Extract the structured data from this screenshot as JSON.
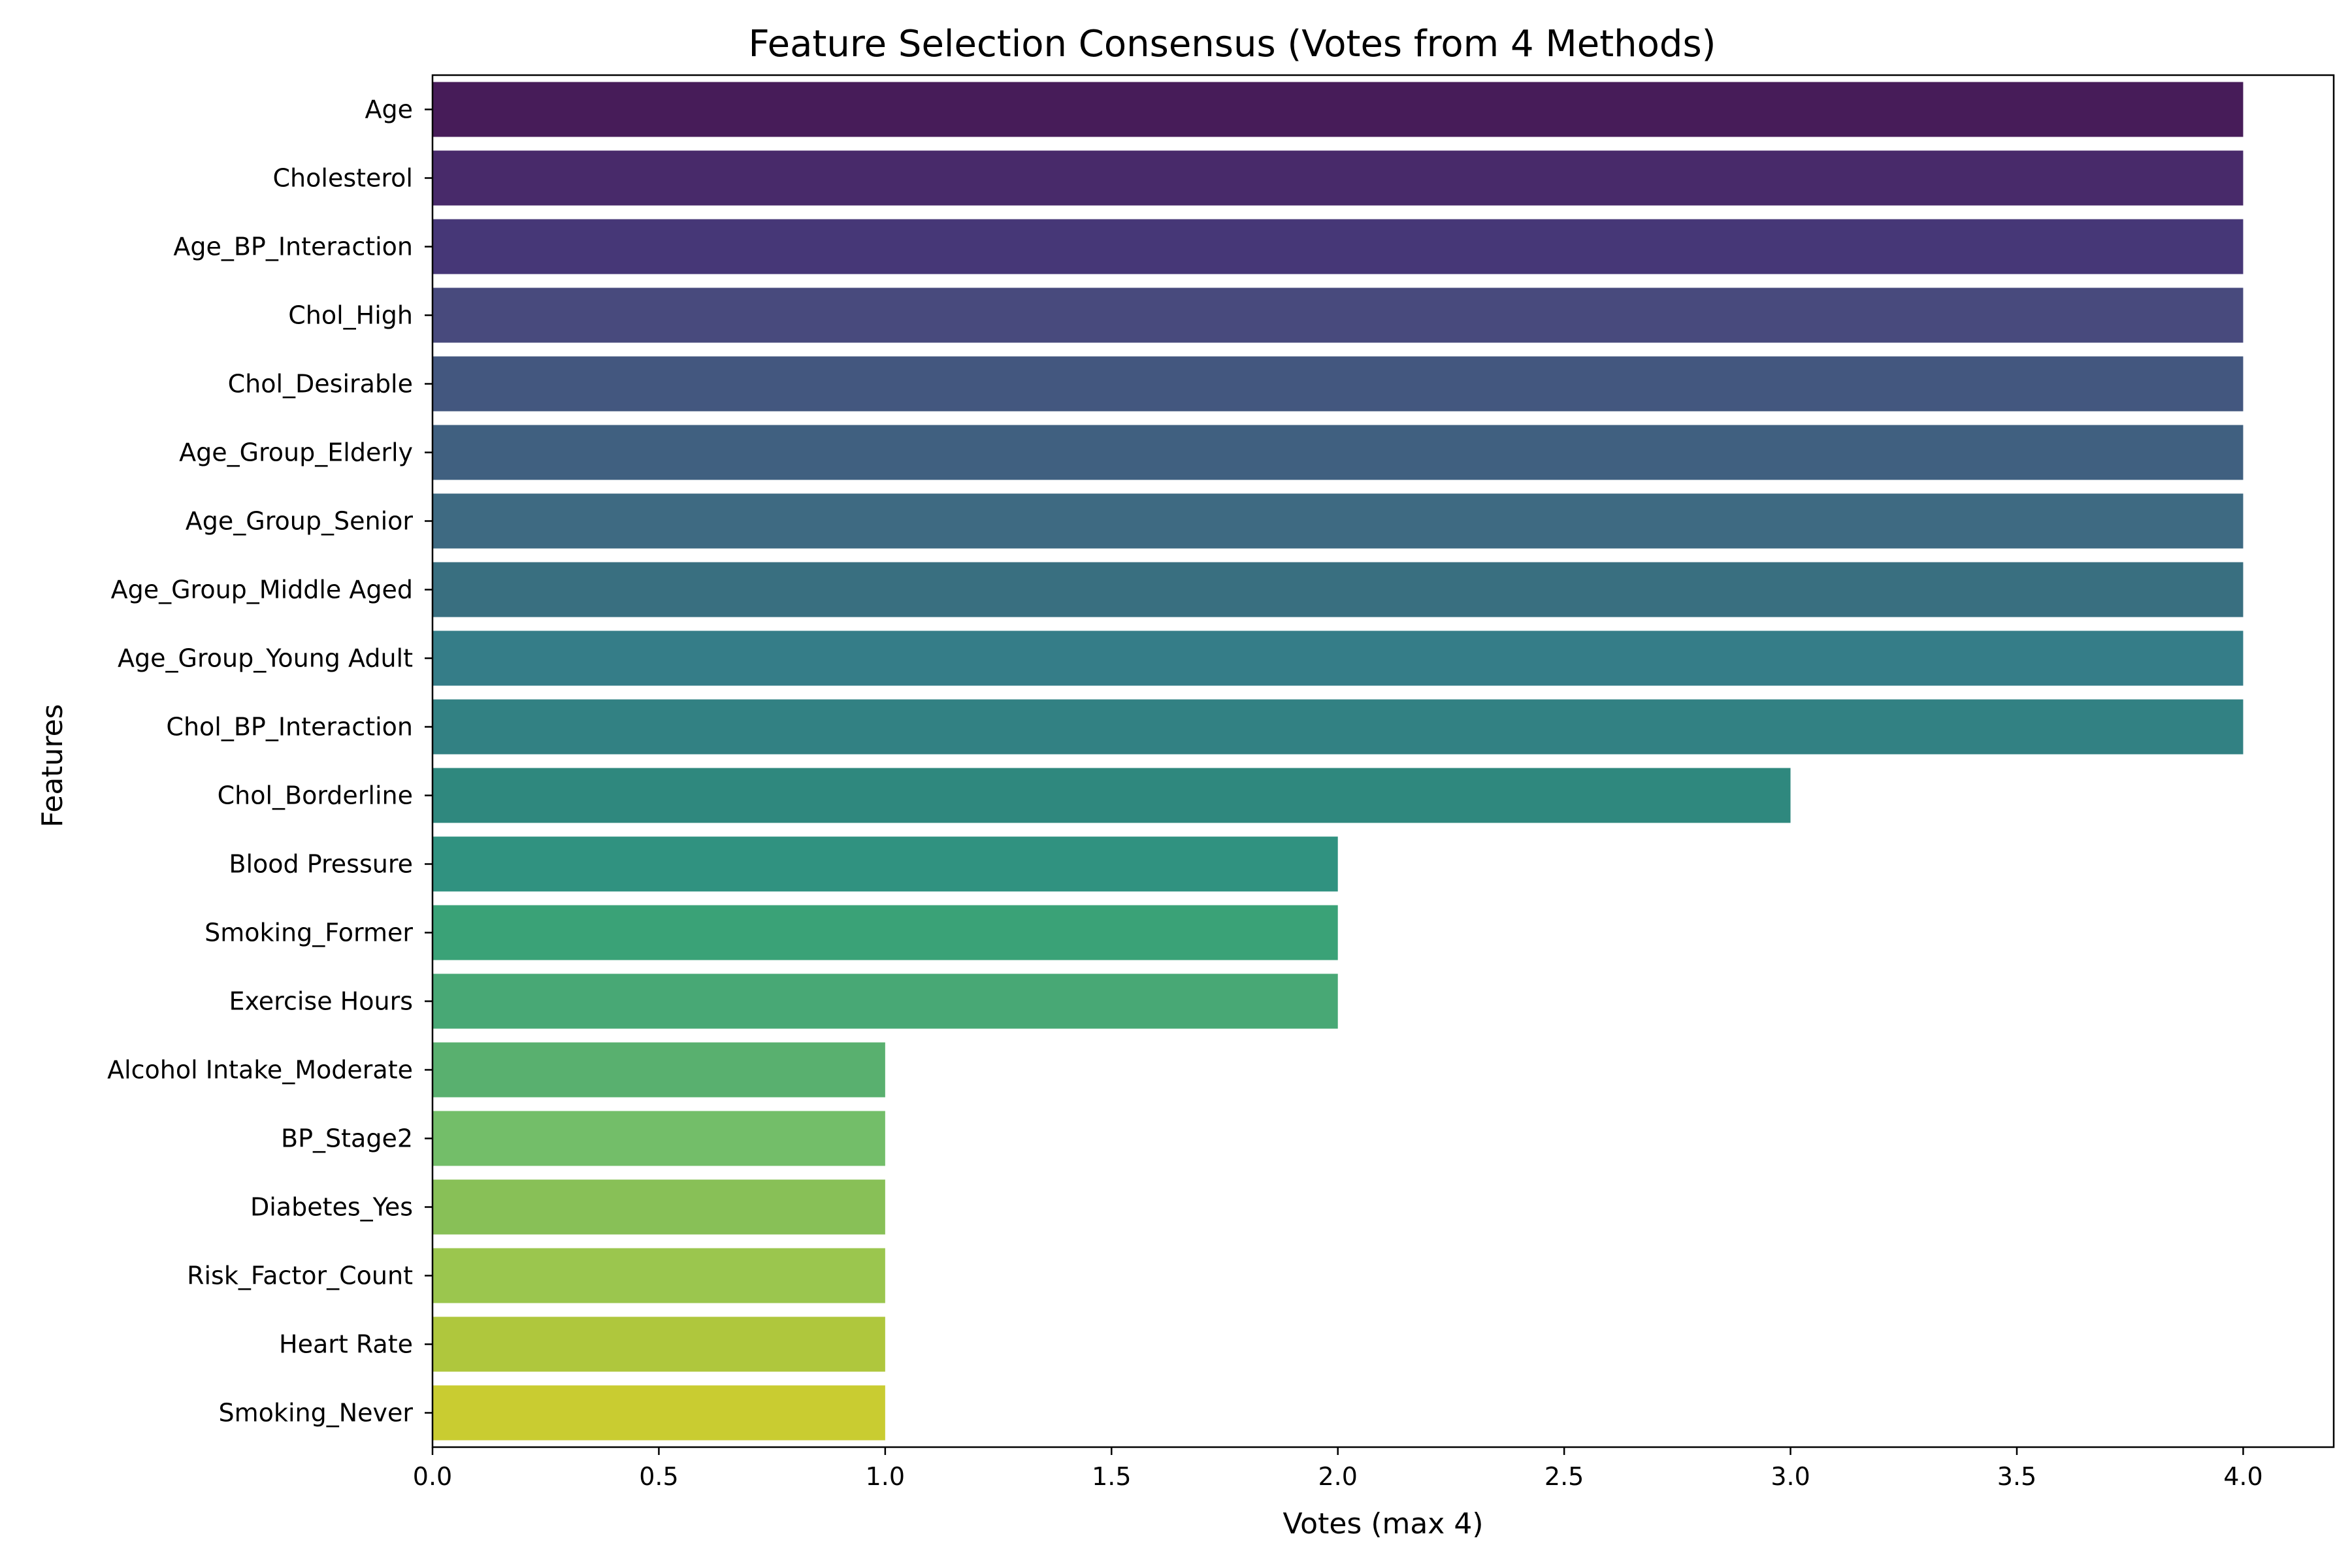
{
  "chart_data": {
    "type": "bar",
    "orientation": "horizontal",
    "title": "Feature Selection Consensus (Votes from 4 Methods)",
    "xlabel": "Votes (max 4)",
    "ylabel": "Features",
    "xlim": [
      0,
      4.2
    ],
    "xticks": [
      "0.0",
      "0.5",
      "1.0",
      "1.5",
      "2.0",
      "2.5",
      "3.0",
      "3.5",
      "4.0"
    ],
    "grid": false,
    "legend": "none",
    "categories": [
      "Age",
      "Cholesterol",
      "Age_BP_Interaction",
      "Chol_High",
      "Chol_Desirable",
      "Age_Group_Elderly",
      "Age_Group_Senior",
      "Age_Group_Middle Aged",
      "Age_Group_Young Adult",
      "Chol_BP_Interaction",
      "Chol_Borderline",
      "Blood Pressure",
      "Smoking_Former",
      "Exercise Hours",
      "Alcohol Intake_Moderate",
      "BP_Stage2",
      "Diabetes_Yes",
      "Risk_Factor_Count",
      "Heart Rate",
      "Smoking_Never"
    ],
    "values": [
      4,
      4,
      4,
      4,
      4,
      4,
      4,
      4,
      4,
      4,
      3,
      2,
      2,
      2,
      1,
      1,
      1,
      1,
      1,
      1
    ],
    "colors": [
      "#471C59",
      "#482A6A",
      "#463777",
      "#484A7D",
      "#43577F",
      "#406080",
      "#3E6A82",
      "#396F80",
      "#357D88",
      "#328183",
      "#2F887E",
      "#309280",
      "#3AA277",
      "#48A875",
      "#59B06F",
      "#73BE69",
      "#88C057",
      "#9BC64E",
      "#AFC73D",
      "#C9CC31"
    ]
  }
}
